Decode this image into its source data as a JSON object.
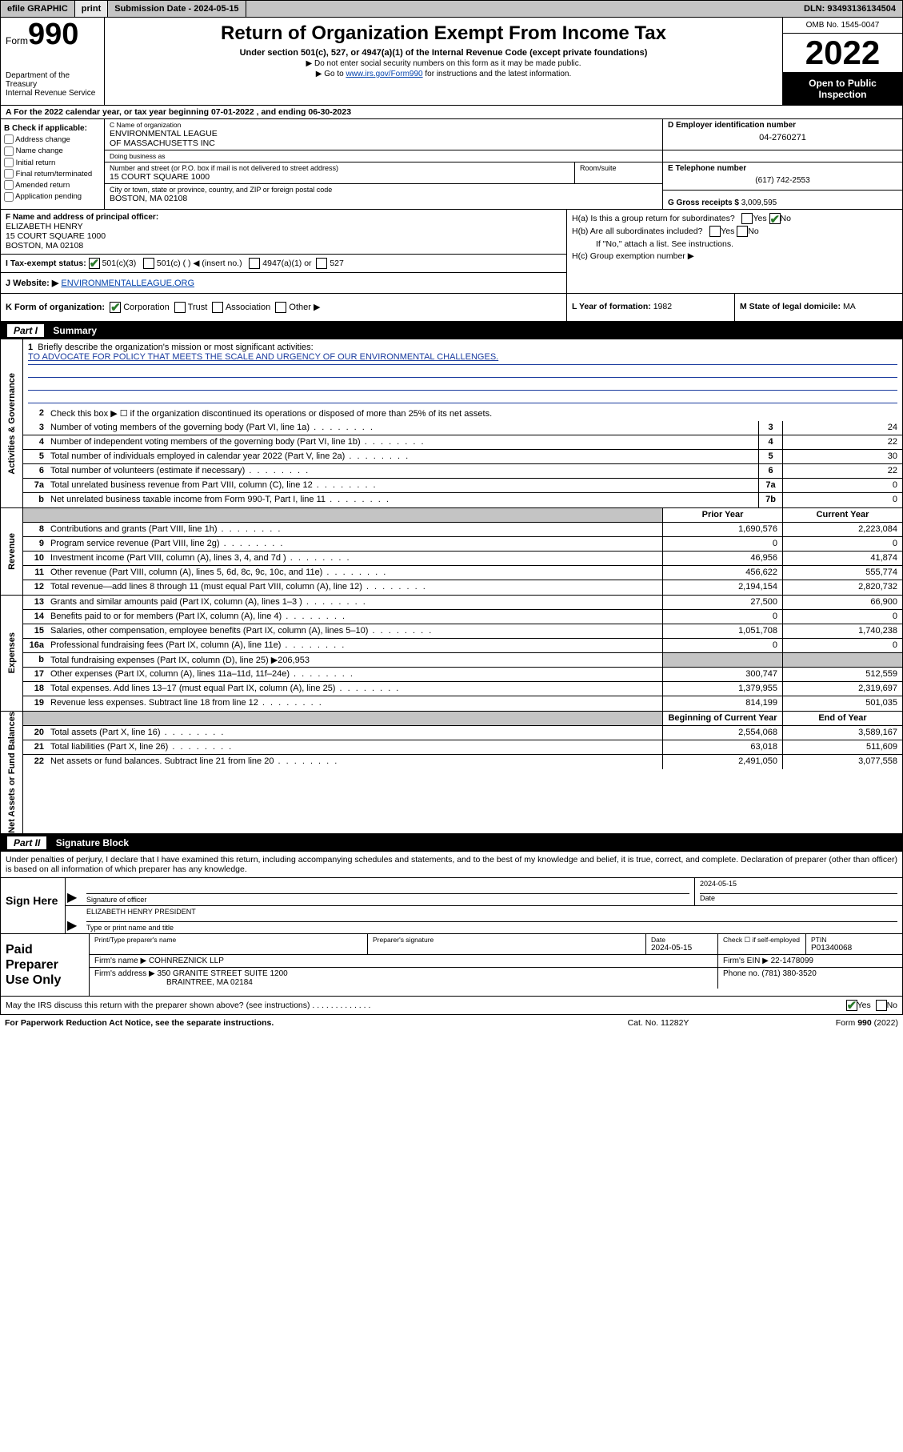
{
  "topbar": {
    "efile": "efile GRAPHIC",
    "print": "print",
    "subdate_label": "Submission Date - ",
    "subdate": "2024-05-15",
    "dln_label": "DLN: ",
    "dln": "93493136134504"
  },
  "header": {
    "form_label": "Form",
    "form_num": "990",
    "dept": "Department of the Treasury\nInternal Revenue Service",
    "title": "Return of Organization Exempt From Income Tax",
    "sub1": "Under section 501(c), 527, or 4947(a)(1) of the Internal Revenue Code (except private foundations)",
    "sub2": "▶ Do not enter social security numbers on this form as it may be made public.",
    "sub3_pre": "▶ Go to ",
    "sub3_link": "www.irs.gov/Form990",
    "sub3_post": " for instructions and the latest information.",
    "omb": "OMB No. 1545-0047",
    "year": "2022",
    "inspect": "Open to Public Inspection"
  },
  "taxyear": {
    "a": "A For the 2022 calendar year, or tax year beginning ",
    "begin": "07-01-2022",
    "mid": " , and ending ",
    "end": "06-30-2023"
  },
  "b": {
    "hdr": "B Check if applicable:",
    "opts": [
      "Address change",
      "Name change",
      "Initial return",
      "Final return/terminated",
      "Amended return",
      "Application pending"
    ]
  },
  "c": {
    "name_lbl": "C Name of organization",
    "name": "ENVIRONMENTAL LEAGUE\nOF MASSACHUSETTS INC",
    "dba_lbl": "Doing business as",
    "street_lbl": "Number and street (or P.O. box if mail is not delivered to street address)",
    "street": "15 COURT SQUARE 1000",
    "room_lbl": "Room/suite",
    "city_lbl": "City or town, state or province, country, and ZIP or foreign postal code",
    "city": "BOSTON, MA  02108"
  },
  "d": {
    "lbl": "D Employer identification number",
    "val": "04-2760271"
  },
  "e": {
    "lbl": "E Telephone number",
    "val": "(617) 742-2553"
  },
  "g": {
    "lbl": "G Gross receipts $ ",
    "val": "3,009,595"
  },
  "f": {
    "lbl": "F Name and address of principal officer:",
    "name": "ELIZABETH HENRY",
    "street": "15 COURT SQUARE 1000",
    "city": "BOSTON, MA  02108"
  },
  "h": {
    "ha": "H(a)  Is this a group return for subordinates?",
    "hb": "H(b)  Are all subordinates included?",
    "hb_note": "If \"No,\" attach a list. See instructions.",
    "hc": "H(c)  Group exemption number ▶"
  },
  "i": {
    "lbl": "I   Tax-exempt status:",
    "opts": [
      "501(c)(3)",
      "501(c) (   ) ◀ (insert no.)",
      "4947(a)(1) or",
      "527"
    ]
  },
  "j": {
    "lbl": "J   Website: ▶ ",
    "val": "ENVIRONMENTALLEAGUE.ORG"
  },
  "k": {
    "lbl": "K Form of organization:",
    "opts": [
      "Corporation",
      "Trust",
      "Association",
      "Other ▶"
    ]
  },
  "l": {
    "lbl": "L Year of formation: ",
    "val": "1982"
  },
  "m": {
    "lbl": "M State of legal domicile: ",
    "val": "MA"
  },
  "part1": {
    "title": "Part I",
    "name": "Summary"
  },
  "governance": {
    "tab": "Activities & Governance",
    "q1": "Briefly describe the organization's mission or most significant activities:",
    "mission": "TO ADVOCATE FOR POLICY THAT MEETS THE SCALE AND URGENCY OF OUR ENVIRONMENTAL CHALLENGES.",
    "q2": "Check this box ▶ ☐  if the organization discontinued its operations or disposed of more than 25% of its net assets.",
    "rows": [
      {
        "n": "3",
        "t": "Number of voting members of the governing body (Part VI, line 1a)",
        "box": "3",
        "v": "24"
      },
      {
        "n": "4",
        "t": "Number of independent voting members of the governing body (Part VI, line 1b)",
        "box": "4",
        "v": "22"
      },
      {
        "n": "5",
        "t": "Total number of individuals employed in calendar year 2022 (Part V, line 2a)",
        "box": "5",
        "v": "30"
      },
      {
        "n": "6",
        "t": "Total number of volunteers (estimate if necessary)",
        "box": "6",
        "v": "22"
      },
      {
        "n": "7a",
        "t": "Total unrelated business revenue from Part VIII, column (C), line 12",
        "box": "7a",
        "v": "0"
      },
      {
        "n": "b",
        "t": "Net unrelated business taxable income from Form 990-T, Part I, line 11",
        "box": "7b",
        "v": "0"
      }
    ]
  },
  "revenue": {
    "tab": "Revenue",
    "head_prior": "Prior Year",
    "head_current": "Current Year",
    "rows": [
      {
        "n": "8",
        "t": "Contributions and grants (Part VIII, line 1h)",
        "p": "1,690,576",
        "c": "2,223,084"
      },
      {
        "n": "9",
        "t": "Program service revenue (Part VIII, line 2g)",
        "p": "0",
        "c": "0"
      },
      {
        "n": "10",
        "t": "Investment income (Part VIII, column (A), lines 3, 4, and 7d )",
        "p": "46,956",
        "c": "41,874"
      },
      {
        "n": "11",
        "t": "Other revenue (Part VIII, column (A), lines 5, 6d, 8c, 9c, 10c, and 11e)",
        "p": "456,622",
        "c": "555,774"
      },
      {
        "n": "12",
        "t": "Total revenue—add lines 8 through 11 (must equal Part VIII, column (A), line 12)",
        "p": "2,194,154",
        "c": "2,820,732"
      }
    ]
  },
  "expenses": {
    "tab": "Expenses",
    "rows": [
      {
        "n": "13",
        "t": "Grants and similar amounts paid (Part IX, column (A), lines 1–3 )",
        "p": "27,500",
        "c": "66,900"
      },
      {
        "n": "14",
        "t": "Benefits paid to or for members (Part IX, column (A), line 4)",
        "p": "0",
        "c": "0"
      },
      {
        "n": "15",
        "t": "Salaries, other compensation, employee benefits (Part IX, column (A), lines 5–10)",
        "p": "1,051,708",
        "c": "1,740,238"
      },
      {
        "n": "16a",
        "t": "Professional fundraising fees (Part IX, column (A), line 11e)",
        "p": "0",
        "c": "0"
      },
      {
        "n": "b",
        "t": "Total fundraising expenses (Part IX, column (D), line 25) ▶206,953",
        "p": "",
        "c": "",
        "grey": true
      },
      {
        "n": "17",
        "t": "Other expenses (Part IX, column (A), lines 11a–11d, 11f–24e)",
        "p": "300,747",
        "c": "512,559"
      },
      {
        "n": "18",
        "t": "Total expenses. Add lines 13–17 (must equal Part IX, column (A), line 25)",
        "p": "1,379,955",
        "c": "2,319,697"
      },
      {
        "n": "19",
        "t": "Revenue less expenses. Subtract line 18 from line 12",
        "p": "814,199",
        "c": "501,035"
      }
    ]
  },
  "netassets": {
    "tab": "Net Assets or Fund Balances",
    "head_begin": "Beginning of Current Year",
    "head_end": "End of Year",
    "rows": [
      {
        "n": "20",
        "t": "Total assets (Part X, line 16)",
        "p": "2,554,068",
        "c": "3,589,167"
      },
      {
        "n": "21",
        "t": "Total liabilities (Part X, line 26)",
        "p": "63,018",
        "c": "511,609"
      },
      {
        "n": "22",
        "t": "Net assets or fund balances. Subtract line 21 from line 20",
        "p": "2,491,050",
        "c": "3,077,558"
      }
    ]
  },
  "part2": {
    "title": "Part II",
    "name": "Signature Block",
    "intro": "Under penalties of perjury, I declare that I have examined this return, including accompanying schedules and statements, and to the best of my knowledge and belief, it is true, correct, and complete. Declaration of preparer (other than officer) is based on all information of which preparer has any knowledge."
  },
  "sign": {
    "label": "Sign Here",
    "sig_lbl": "Signature of officer",
    "date_lbl": "Date",
    "date": "2024-05-15",
    "name": "ELIZABETH HENRY PRESIDENT",
    "name_lbl": "Type or print name and title"
  },
  "preparer": {
    "label": "Paid Preparer Use Only",
    "name_lbl": "Print/Type preparer's name",
    "sig_lbl": "Preparer's signature",
    "date_lbl": "Date",
    "date": "2024-05-15",
    "check_lbl": "Check ☐ if self-employed",
    "ptin_lbl": "PTIN",
    "ptin": "P01340068",
    "firm_name_lbl": "Firm's name    ▶ ",
    "firm_name": "COHNREZNICK LLP",
    "firm_ein_lbl": "Firm's EIN ▶ ",
    "firm_ein": "22-1478099",
    "firm_addr_lbl": "Firm's address ▶ ",
    "firm_addr1": "350 GRANITE STREET SUITE 1200",
    "firm_addr2": "BRAINTREE, MA  02184",
    "phone_lbl": "Phone no. ",
    "phone": "(781) 380-3520"
  },
  "discuss": {
    "q": "May the IRS discuss this return with the preparer shown above? (see instructions)",
    "yes": "Yes",
    "no": "No"
  },
  "footer": {
    "left": "For Paperwork Reduction Act Notice, see the separate instructions.",
    "mid": "Cat. No. 11282Y",
    "right_pre": "Form ",
    "right_form": "990",
    "right_post": " (2022)"
  }
}
